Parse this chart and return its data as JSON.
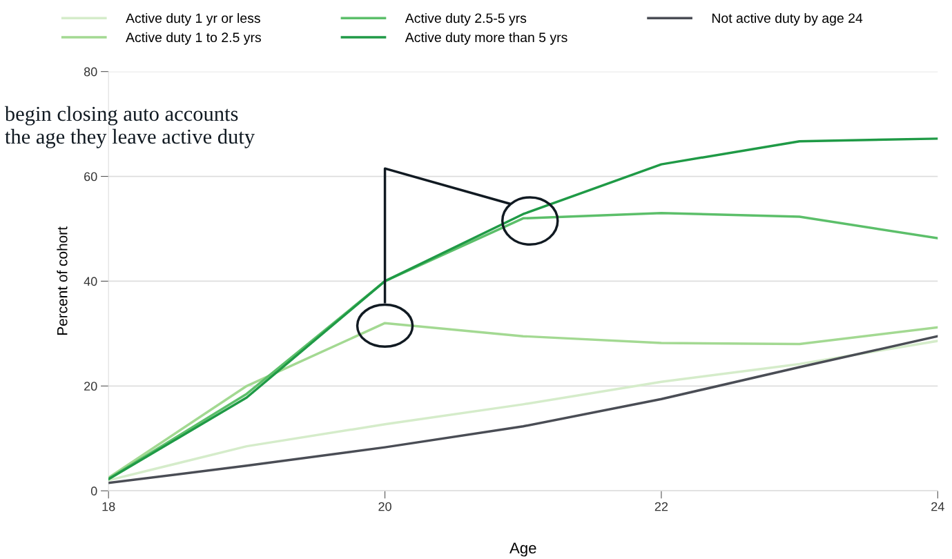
{
  "chart_data": {
    "type": "line",
    "xlabel": "Age",
    "ylabel": "Percent of cohort",
    "x": [
      18,
      19,
      20,
      21,
      22,
      23,
      24
    ],
    "series": [
      {
        "name": "Active duty 1 yr or less",
        "color": "#d5ecca",
        "values": [
          2.0,
          8.5,
          12.7,
          16.5,
          20.8,
          24.2,
          28.6
        ]
      },
      {
        "name": "Active duty 1 to 2.5 yrs",
        "color": "#a3d992",
        "values": [
          2.5,
          20.0,
          32.0,
          29.5,
          28.2,
          28.0,
          31.2
        ]
      },
      {
        "name": "Active duty 2.5-5 yrs",
        "color": "#5cbf6a",
        "values": [
          2.3,
          18.5,
          40.0,
          52.0,
          53.0,
          52.3,
          48.2
        ]
      },
      {
        "name": "Active duty more than 5 yrs",
        "color": "#1f9a46",
        "values": [
          2.2,
          17.8,
          40.0,
          52.8,
          62.3,
          66.7,
          67.2
        ]
      },
      {
        "name": "Not active duty by age 24",
        "color": "#4a4d55",
        "values": [
          1.5,
          4.8,
          8.3,
          12.3,
          17.5,
          23.6,
          29.5
        ]
      }
    ],
    "xlim": [
      18,
      24
    ],
    "xticks": [
      18,
      20,
      22,
      24
    ],
    "ylim": [
      0,
      80
    ],
    "yticks": [
      0,
      20,
      40,
      60,
      80
    ],
    "grid": "y",
    "legend": "top",
    "marker": "none",
    "line_style": "solid",
    "annotations": [
      "begin closing auto accounts\nthe age they leave active duty"
    ]
  }
}
